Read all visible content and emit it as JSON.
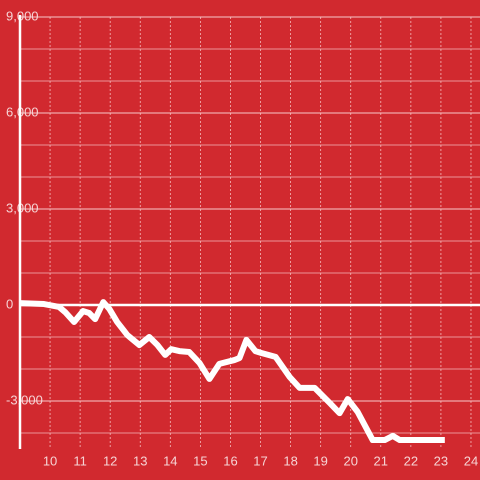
{
  "chart_data": {
    "type": "line",
    "color": "#ffffff",
    "background": "#d1292f",
    "x": [
      9.0,
      9.8,
      10.3,
      10.5,
      10.8,
      11.1,
      11.3,
      11.5,
      11.77,
      11.97,
      12.23,
      12.57,
      12.97,
      13.3,
      13.57,
      13.83,
      14.03,
      14.3,
      14.63,
      14.97,
      15.3,
      15.63,
      16.13,
      16.3,
      16.53,
      16.83,
      17.03,
      17.5,
      17.97,
      18.3,
      18.8,
      19.3,
      19.63,
      19.9,
      20.23,
      20.73,
      21.13,
      21.4,
      21.63,
      23.13
    ],
    "values": [
      60,
      30,
      -60,
      -220,
      -530,
      -190,
      -250,
      -440,
      90,
      -120,
      -530,
      -940,
      -1250,
      -1000,
      -1250,
      -1560,
      -1380,
      -1440,
      -1470,
      -1810,
      -2310,
      -1840,
      -1720,
      -1660,
      -1090,
      -1440,
      -1500,
      -1620,
      -2250,
      -2590,
      -2590,
      -3060,
      -3380,
      -2940,
      -3340,
      -4220,
      -4220,
      -4090,
      -4220,
      -4220
    ],
    "xlim": [
      9,
      24.3
    ],
    "ylim": [
      -4500,
      9000
    ],
    "xticks": [
      10,
      11,
      12,
      13,
      14,
      15,
      16,
      17,
      18,
      19,
      20,
      21,
      22,
      23,
      24
    ],
    "yticks": [
      {
        "value": 9000,
        "label": "9,000"
      },
      {
        "value": 6000,
        "label": "6,000"
      },
      {
        "value": 3000,
        "label": "3,000"
      },
      0,
      {
        "value": -3000,
        "label": "-3,000"
      }
    ],
    "minor_yticks": [
      8000,
      7000,
      5000,
      4000,
      2000,
      1000,
      -1000,
      -2000,
      -4000
    ],
    "grid": true
  }
}
